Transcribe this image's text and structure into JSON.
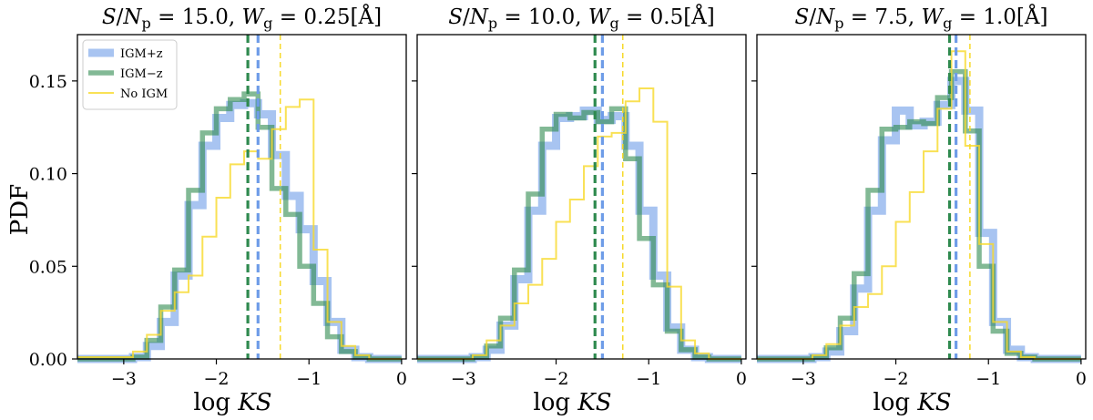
{
  "figure": {
    "ylabel": "PDF",
    "xlabel": "log KS",
    "xlabel_plain": "log ",
    "xlabel_italic": "KS"
  },
  "legend": [
    {
      "label": "IGM+z",
      "color": "#6e9ce8",
      "style": "thick"
    },
    {
      "label": "IGM−z",
      "color": "#2f8a4f",
      "style": "medium"
    },
    {
      "label": "No IGM",
      "color": "#f7d92a",
      "style": "thin"
    }
  ],
  "chart_data": [
    {
      "type": "histogram-step",
      "title": "S/Np = 15.0, Wg = 0.25[Å]",
      "title_parts": {
        "snr": "15.0",
        "wg": "0.25"
      },
      "xlim": [
        -3.5,
        0.05
      ],
      "ylim": [
        0,
        0.175
      ],
      "xticks": [
        -3,
        -2,
        -1,
        0
      ],
      "yticks": [
        0.0,
        0.05,
        0.1,
        0.15
      ],
      "ytick_labels": [
        "0.00",
        "0.05",
        "0.10",
        "0.15"
      ],
      "bin_edges": [
        -3.5,
        -2.9,
        -2.75,
        -2.6,
        -2.45,
        -2.3,
        -2.15,
        -2.0,
        -1.85,
        -1.7,
        -1.55,
        -1.4,
        -1.25,
        -1.1,
        -0.95,
        -0.8,
        -0.65,
        -0.5,
        -0.35,
        0.0
      ],
      "series": [
        {
          "name": "IGM+z",
          "values": [
            0.0,
            0.001,
            0.007,
            0.02,
            0.045,
            0.083,
            0.115,
            0.13,
            0.137,
            0.138,
            0.132,
            0.11,
            0.088,
            0.07,
            0.042,
            0.02,
            0.005,
            0.001,
            0.0
          ]
        },
        {
          "name": "IGM−z",
          "values": [
            0.0,
            0.001,
            0.01,
            0.028,
            0.048,
            0.091,
            0.122,
            0.135,
            0.14,
            0.143,
            0.125,
            0.092,
            0.078,
            0.05,
            0.03,
            0.012,
            0.004,
            0.001,
            0.0
          ]
        },
        {
          "name": "No IGM",
          "values": [
            0.001,
            0.004,
            0.013,
            0.026,
            0.036,
            0.045,
            0.066,
            0.087,
            0.105,
            0.112,
            0.108,
            0.124,
            0.136,
            0.14,
            0.059,
            0.02,
            0.007,
            0.002,
            0.0
          ]
        }
      ],
      "medians": [
        {
          "name": "IGM+z",
          "value": -1.55
        },
        {
          "name": "IGM−z",
          "value": -1.66
        },
        {
          "name": "No IGM",
          "value": -1.31
        }
      ]
    },
    {
      "type": "histogram-step",
      "title": "S/Np = 10.0, Wg = 0.5[Å]",
      "title_parts": {
        "snr": "10.0",
        "wg": "0.5"
      },
      "xlim": [
        -3.5,
        0.05
      ],
      "ylim": [
        0,
        0.175
      ],
      "xticks": [
        -3,
        -2,
        -1,
        0
      ],
      "yticks": [
        0.0,
        0.05,
        0.1,
        0.15
      ],
      "ytick_labels": [
        "0.00",
        "0.05",
        "0.10",
        "0.15"
      ],
      "bin_edges": [
        -3.5,
        -2.9,
        -2.75,
        -2.6,
        -2.45,
        -2.3,
        -2.15,
        -2.0,
        -1.85,
        -1.7,
        -1.55,
        -1.4,
        -1.25,
        -1.1,
        -0.95,
        -0.8,
        -0.65,
        -0.5,
        -0.35,
        0.0
      ],
      "series": [
        {
          "name": "IGM+z",
          "values": [
            0.0,
            0.001,
            0.005,
            0.018,
            0.043,
            0.08,
            0.115,
            0.13,
            0.131,
            0.134,
            0.129,
            0.131,
            0.115,
            0.08,
            0.045,
            0.017,
            0.005,
            0.001,
            0.0
          ]
        },
        {
          "name": "IGM−z",
          "values": [
            0.0,
            0.001,
            0.007,
            0.022,
            0.048,
            0.089,
            0.124,
            0.132,
            0.13,
            0.133,
            0.128,
            0.135,
            0.108,
            0.065,
            0.04,
            0.015,
            0.005,
            0.001,
            0.0
          ]
        },
        {
          "name": "No IGM",
          "values": [
            0.0,
            0.002,
            0.01,
            0.018,
            0.03,
            0.04,
            0.054,
            0.074,
            0.086,
            0.104,
            0.12,
            0.122,
            0.139,
            0.146,
            0.128,
            0.039,
            0.01,
            0.003,
            0.0
          ]
        }
      ],
      "medians": [
        {
          "name": "IGM+z",
          "value": -1.5
        },
        {
          "name": "IGM−z",
          "value": -1.58
        },
        {
          "name": "No IGM",
          "value": -1.28
        }
      ]
    },
    {
      "type": "histogram-step",
      "title": "S/Np = 7.5, Wg = 1.0[Å]",
      "title_parts": {
        "snr": "7.5",
        "wg": "1.0"
      },
      "xlim": [
        -3.5,
        0.05
      ],
      "ylim": [
        0,
        0.175
      ],
      "xticks": [
        -3,
        -2,
        -1,
        0
      ],
      "yticks": [
        0.0,
        0.05,
        0.1,
        0.15
      ],
      "ytick_labels": [
        "0.00",
        "0.05",
        "0.10",
        "0.15"
      ],
      "bin_edges": [
        -3.5,
        -2.9,
        -2.75,
        -2.6,
        -2.45,
        -2.3,
        -2.15,
        -2.0,
        -1.85,
        -1.7,
        -1.55,
        -1.4,
        -1.25,
        -1.1,
        -0.95,
        -0.8,
        -0.65,
        -0.5,
        -0.35,
        0.0
      ],
      "series": [
        {
          "name": "IGM+z",
          "values": [
            0.0,
            0.001,
            0.004,
            0.015,
            0.038,
            0.08,
            0.118,
            0.134,
            0.126,
            0.128,
            0.137,
            0.15,
            0.134,
            0.068,
            0.02,
            0.005,
            0.001,
            0.0,
            0.0
          ]
        },
        {
          "name": "IGM−z",
          "values": [
            0.0,
            0.001,
            0.006,
            0.022,
            0.046,
            0.091,
            0.124,
            0.125,
            0.128,
            0.127,
            0.141,
            0.155,
            0.123,
            0.05,
            0.015,
            0.003,
            0.001,
            0.0,
            0.0
          ]
        },
        {
          "name": "No IGM",
          "values": [
            0.0,
            0.002,
            0.008,
            0.018,
            0.028,
            0.035,
            0.05,
            0.074,
            0.09,
            0.112,
            0.135,
            0.166,
            0.115,
            0.062,
            0.02,
            0.004,
            0.001,
            0.0,
            0.0
          ]
        }
      ],
      "medians": [
        {
          "name": "IGM+z",
          "value": -1.35
        },
        {
          "name": "IGM−z",
          "value": -1.42
        },
        {
          "name": "No IGM",
          "value": -1.2
        }
      ]
    }
  ]
}
